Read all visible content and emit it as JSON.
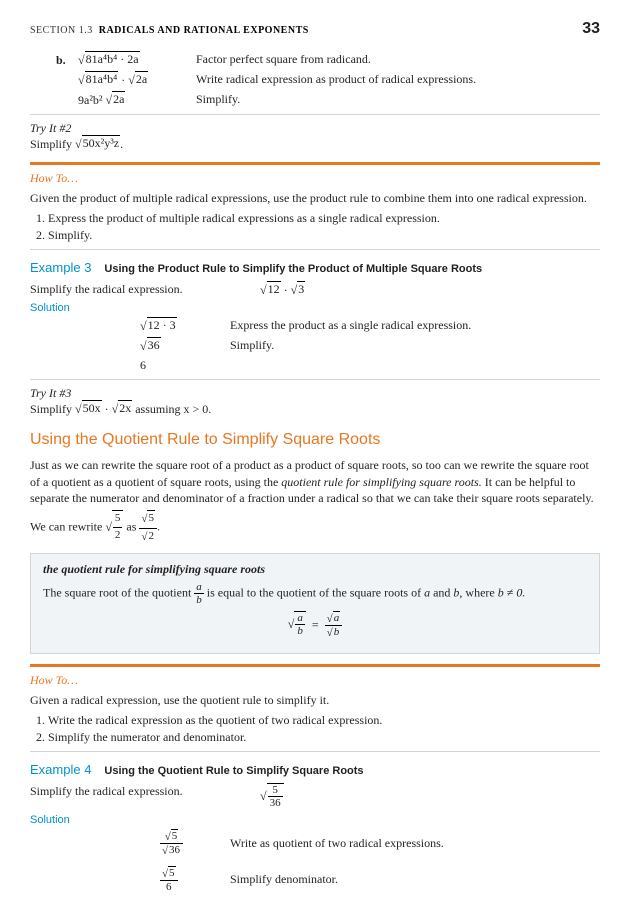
{
  "header": {
    "section": "SECTION 1.3",
    "title": "RADICALS AND RATIONAL EXPONENTS",
    "page": "33"
  },
  "intro": {
    "label": "b.",
    "r1e": "81a⁴b⁴ · 2a",
    "r1d": "Factor perfect square from radicand.",
    "r2e": "81a⁴b⁴",
    "r2e2": "2a",
    "r2d": "Write radical expression as product of radical expressions.",
    "r3e": "9a²b²",
    "r3e2": "2a",
    "r3d": "Simplify."
  },
  "try2": {
    "label": "Try It #2",
    "txt1": "Simplify ",
    "expr": "50x²y³z",
    "txt2": "."
  },
  "howto1": {
    "label": "How To…",
    "intro": "Given the product of multiple radical expressions, use the product rule to combine them into one radical expression.",
    "s1": "Express the product of multiple radical expressions as a single radical expression.",
    "s2": "Simplify."
  },
  "ex3": {
    "label": "Example 3",
    "title": "Using the Product Rule to Simplify the Product of Multiple Square Roots",
    "prompt": "Simplify the radical expression.",
    "expr1": "12",
    "expr2": "3",
    "sol": "Solution",
    "s1e": "12 · 3",
    "s1d": "Express the product as a single radical expression.",
    "s2e": "36",
    "s2d": "Simplify.",
    "s3e": "6"
  },
  "try3": {
    "label": "Try It #3",
    "t1": "Simplify ",
    "e1": "50x",
    "t2": " · ",
    "e2": "2x",
    "t3": " assuming x > 0."
  },
  "quot_heading": "Using the Quotient Rule to Simplify Square Roots",
  "quot_para": {
    "p1": "Just as we can rewrite the square root of a product as a product of square roots, so too can we rewrite the square root of a quotient as a quotient of square roots, using the ",
    "em": "quotient rule for simplifying square roots.",
    "p2": " It can be helpful to separate the numerator and denominator of a fraction under a radical so that we can take their square roots separately.",
    "rw1": "We can rewrite ",
    "rw2": " as ",
    "rw3": "."
  },
  "rulebox": {
    "title": "the quotient rule for simplifying square roots",
    "t1": "The square root of the quotient ",
    "t2": " is equal to the quotient of the square roots of ",
    "t3": "a",
    "t4": " and ",
    "t5": "b",
    "t6": ", where ",
    "t7": "b ≠ 0."
  },
  "howto2": {
    "label": "How To…",
    "intro": "Given a radical expression, use the quotient rule to simplify it.",
    "s1": "Write the radical expression as the quotient of two radical expression.",
    "s2": "Simplify the numerator and denominator."
  },
  "ex4": {
    "label": "Example 4",
    "title": "Using the Quotient Rule to Simplify Square Roots",
    "prompt": "Simplify the radical expression.",
    "sol": "Solution",
    "s1d": "Write as quotient of two radical expressions.",
    "s2d": "Simplify denominator."
  }
}
